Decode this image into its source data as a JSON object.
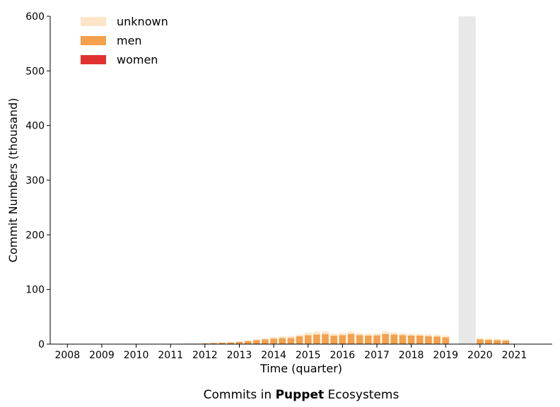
{
  "chart_data": {
    "type": "bar",
    "stacked": true,
    "caption_prefix": "Commits in ",
    "caption_bold": "Puppet",
    "caption_suffix": " Ecosystems",
    "xlabel": "Time (quarter)",
    "ylabel": "Commit Numbers (thousand)",
    "ylim": [
      0,
      600
    ],
    "yticks": [
      0,
      100,
      200,
      300,
      400,
      500,
      600
    ],
    "xticks": [
      "2008",
      "2009",
      "2010",
      "2011",
      "2012",
      "2013",
      "2014",
      "2015",
      "2016",
      "2017",
      "2018",
      "2019",
      "2020",
      "2021"
    ],
    "xlim": [
      2007.5,
      2022.1
    ],
    "grid": false,
    "legend_position": "top-left",
    "x": [
      2011.0,
      2011.25,
      2011.5,
      2011.75,
      2012.0,
      2012.25,
      2012.5,
      2012.75,
      2013.0,
      2013.25,
      2013.5,
      2013.75,
      2014.0,
      2014.25,
      2014.5,
      2014.75,
      2015.0,
      2015.25,
      2015.5,
      2015.75,
      2016.0,
      2016.25,
      2016.5,
      2016.75,
      2017.0,
      2017.25,
      2017.5,
      2017.75,
      2018.0,
      2018.25,
      2018.5,
      2018.75,
      2019.0,
      2020.0,
      2020.25,
      2020.5,
      2020.75
    ],
    "series": [
      {
        "name": "women",
        "color": "#e03030",
        "values": [
          0,
          0,
          0,
          0,
          0,
          0,
          0,
          0,
          0,
          0.1,
          0.1,
          0.2,
          0.2,
          0.2,
          0.3,
          0.3,
          0.4,
          0.4,
          0.4,
          0.4,
          0.5,
          0.5,
          0.5,
          0.5,
          0.5,
          0.5,
          0.5,
          0.5,
          0.6,
          0.6,
          0.6,
          0.5,
          0.4,
          0.3,
          0.3,
          0.3,
          0.2
        ]
      },
      {
        "name": "men",
        "color": "#f4a04c",
        "values": [
          0.3,
          0.5,
          0.8,
          1.0,
          1.5,
          2.0,
          2.5,
          3.0,
          4.0,
          5.5,
          7.0,
          8.5,
          10.0,
          11.0,
          11.0,
          14.0,
          16.0,
          17.0,
          18.0,
          15.0,
          16.0,
          18.0,
          16.0,
          15.0,
          15.5,
          18.0,
          17.0,
          16.0,
          15.0,
          15.0,
          14.0,
          13.5,
          12.0,
          8.5,
          7.5,
          7.0,
          6.5
        ]
      },
      {
        "name": "unknown",
        "color": "#fde6c8",
        "values": [
          0.1,
          0.2,
          0.3,
          0.4,
          0.5,
          0.7,
          0.9,
          1.0,
          1.2,
          1.4,
          1.8,
          2.0,
          2.5,
          3.0,
          3.5,
          3.5,
          4.5,
          5.5,
          5.0,
          4.0,
          4.0,
          4.5,
          3.5,
          3.5,
          3.5,
          4.5,
          4.0,
          3.5,
          3.5,
          3.0,
          3.5,
          3.5,
          3.5,
          2.5,
          2.5,
          2.5,
          2.0
        ]
      }
    ],
    "legend_order": [
      "unknown",
      "men",
      "women"
    ],
    "missing_region": {
      "x_start": 2019.375,
      "x_end": 2019.875,
      "color": "#e8e8e8"
    }
  }
}
